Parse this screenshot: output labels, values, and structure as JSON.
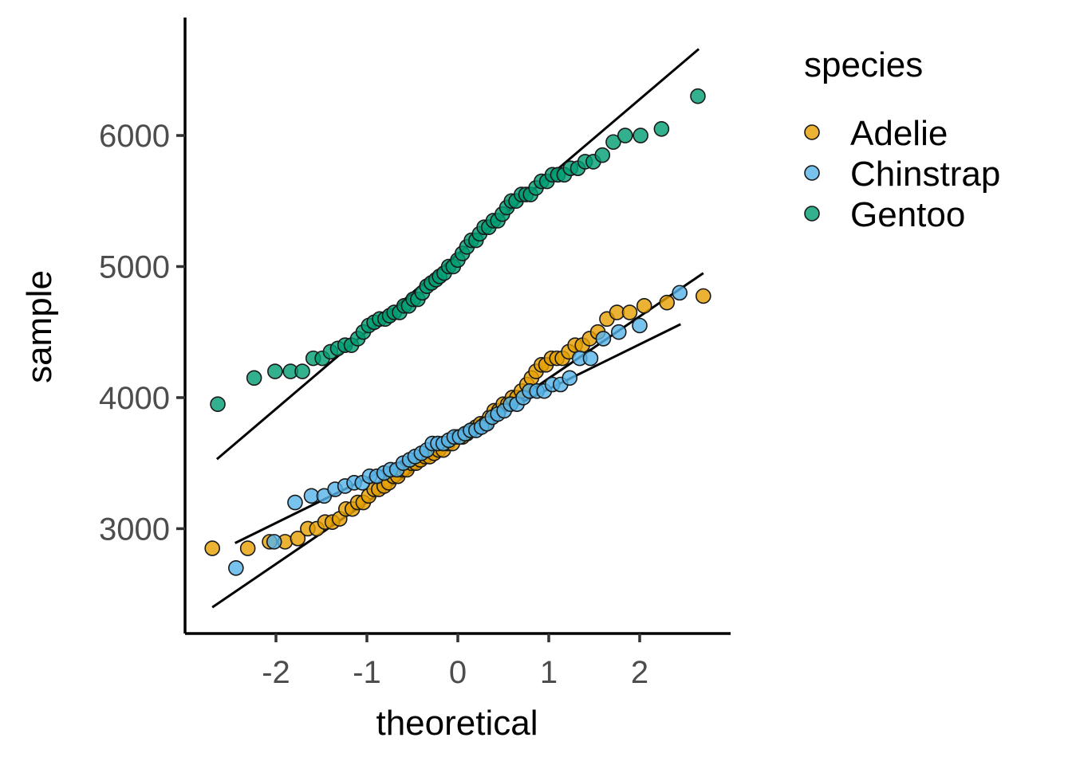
{
  "chart_data": {
    "type": "scatter",
    "title": "",
    "xlabel": "theoretical",
    "ylabel": "sample",
    "xlim": [
      -3.0,
      3.0
    ],
    "ylim": [
      2200,
      6900
    ],
    "x_ticks": [
      -2,
      -1,
      0,
      1,
      2
    ],
    "y_ticks": [
      3000,
      4000,
      5000,
      6000
    ],
    "grid": false,
    "legend": {
      "title": "species",
      "position": "right"
    },
    "series": [
      {
        "name": "Adelie",
        "color": "#E69F00",
        "n": 151,
        "y_min": 2850,
        "y_max": 4775,
        "reference_line": {
          "x": [
            -2.7,
            2.7
          ],
          "y": [
            2400,
            4950
          ]
        },
        "points": [
          [
            -2.7,
            2850
          ],
          [
            -2.31,
            2850
          ],
          [
            -2.07,
            2900
          ],
          [
            -1.9,
            2900
          ],
          [
            -1.76,
            2925
          ],
          [
            -1.65,
            3000
          ],
          [
            -1.55,
            3000
          ],
          [
            -1.46,
            3050
          ],
          [
            -1.38,
            3050
          ],
          [
            -1.3,
            3075
          ],
          [
            -1.23,
            3150
          ],
          [
            -1.16,
            3150
          ],
          [
            -1.1,
            3200
          ],
          [
            -1.04,
            3200
          ],
          [
            -0.98,
            3250
          ],
          [
            -0.92,
            3300
          ],
          [
            -0.87,
            3300
          ],
          [
            -0.81,
            3325
          ],
          [
            -0.76,
            3350
          ],
          [
            -0.71,
            3400
          ],
          [
            -0.66,
            3400
          ],
          [
            -0.61,
            3450
          ],
          [
            -0.56,
            3450
          ],
          [
            -0.51,
            3500
          ],
          [
            -0.46,
            3500
          ],
          [
            -0.41,
            3525
          ],
          [
            -0.36,
            3550
          ],
          [
            -0.31,
            3550
          ],
          [
            -0.26,
            3575
          ],
          [
            -0.21,
            3600
          ],
          [
            -0.16,
            3600
          ],
          [
            -0.11,
            3650
          ],
          [
            -0.06,
            3650
          ],
          [
            0.0,
            3700
          ],
          [
            0.05,
            3700
          ],
          [
            0.1,
            3725
          ],
          [
            0.15,
            3750
          ],
          [
            0.2,
            3775
          ],
          [
            0.25,
            3800
          ],
          [
            0.3,
            3800
          ],
          [
            0.35,
            3850
          ],
          [
            0.4,
            3900
          ],
          [
            0.45,
            3900
          ],
          [
            0.5,
            3950
          ],
          [
            0.55,
            3950
          ],
          [
            0.6,
            4000
          ],
          [
            0.65,
            4000
          ],
          [
            0.7,
            4050
          ],
          [
            0.76,
            4100
          ],
          [
            0.81,
            4150
          ],
          [
            0.86,
            4200
          ],
          [
            0.92,
            4250
          ],
          [
            0.97,
            4250
          ],
          [
            1.03,
            4300
          ],
          [
            1.09,
            4300
          ],
          [
            1.15,
            4300
          ],
          [
            1.22,
            4350
          ],
          [
            1.29,
            4400
          ],
          [
            1.37,
            4400
          ],
          [
            1.45,
            4450
          ],
          [
            1.54,
            4500
          ],
          [
            1.64,
            4600
          ],
          [
            1.75,
            4650
          ],
          [
            1.89,
            4650
          ],
          [
            2.05,
            4700
          ],
          [
            2.3,
            4725
          ],
          [
            2.7,
            4775
          ]
        ]
      },
      {
        "name": "Chinstrap",
        "color": "#56B4E9",
        "n": 68,
        "y_min": 2700,
        "y_max": 4800,
        "reference_line": {
          "x": [
            -2.45,
            2.45
          ],
          "y": [
            2890,
            4560
          ]
        },
        "points": [
          [
            -2.44,
            2700
          ],
          [
            -2.02,
            2900
          ],
          [
            -1.79,
            3200
          ],
          [
            -1.61,
            3250
          ],
          [
            -1.47,
            3250
          ],
          [
            -1.35,
            3300
          ],
          [
            -1.24,
            3325
          ],
          [
            -1.14,
            3350
          ],
          [
            -1.05,
            3350
          ],
          [
            -0.97,
            3400
          ],
          [
            -0.89,
            3400
          ],
          [
            -0.81,
            3425
          ],
          [
            -0.74,
            3450
          ],
          [
            -0.67,
            3450
          ],
          [
            -0.6,
            3500
          ],
          [
            -0.53,
            3525
          ],
          [
            -0.47,
            3550
          ],
          [
            -0.4,
            3575
          ],
          [
            -0.34,
            3600
          ],
          [
            -0.28,
            3650
          ],
          [
            -0.22,
            3650
          ],
          [
            -0.16,
            3650
          ],
          [
            -0.1,
            3675
          ],
          [
            -0.04,
            3700
          ],
          [
            0.02,
            3700
          ],
          [
            0.08,
            3725
          ],
          [
            0.14,
            3750
          ],
          [
            0.2,
            3750
          ],
          [
            0.26,
            3775
          ],
          [
            0.32,
            3800
          ],
          [
            0.38,
            3850
          ],
          [
            0.44,
            3875
          ],
          [
            0.51,
            3900
          ],
          [
            0.58,
            3950
          ],
          [
            0.65,
            3950
          ],
          [
            0.72,
            4000
          ],
          [
            0.79,
            4050
          ],
          [
            0.87,
            4050
          ],
          [
            0.95,
            4050
          ],
          [
            1.04,
            4100
          ],
          [
            1.13,
            4100
          ],
          [
            1.23,
            4150
          ],
          [
            1.34,
            4300
          ],
          [
            1.46,
            4300
          ],
          [
            1.6,
            4450
          ],
          [
            1.77,
            4500
          ],
          [
            2.0,
            4550
          ],
          [
            2.44,
            4800
          ]
        ]
      },
      {
        "name": "Gentoo",
        "color": "#009E73",
        "n": 123,
        "y_min": 3950,
        "y_max": 6300,
        "reference_line": {
          "x": [
            -2.65,
            2.65
          ],
          "y": [
            3530,
            6660
          ]
        },
        "points": [
          [
            -2.64,
            3950
          ],
          [
            -2.24,
            4150
          ],
          [
            -2.01,
            4200
          ],
          [
            -1.84,
            4200
          ],
          [
            -1.71,
            4200
          ],
          [
            -1.59,
            4300
          ],
          [
            -1.49,
            4300
          ],
          [
            -1.4,
            4350
          ],
          [
            -1.32,
            4375
          ],
          [
            -1.24,
            4400
          ],
          [
            -1.17,
            4400
          ],
          [
            -1.1,
            4450
          ],
          [
            -1.04,
            4500
          ],
          [
            -0.98,
            4550
          ],
          [
            -0.92,
            4575
          ],
          [
            -0.86,
            4600
          ],
          [
            -0.8,
            4600
          ],
          [
            -0.75,
            4625
          ],
          [
            -0.7,
            4650
          ],
          [
            -0.64,
            4650
          ],
          [
            -0.59,
            4700
          ],
          [
            -0.54,
            4700
          ],
          [
            -0.49,
            4750
          ],
          [
            -0.44,
            4750
          ],
          [
            -0.39,
            4800
          ],
          [
            -0.34,
            4850
          ],
          [
            -0.29,
            4875
          ],
          [
            -0.24,
            4900
          ],
          [
            -0.2,
            4925
          ],
          [
            -0.15,
            4950
          ],
          [
            -0.1,
            5000
          ],
          [
            -0.05,
            5000
          ],
          [
            0.0,
            5050
          ],
          [
            0.05,
            5100
          ],
          [
            0.1,
            5150
          ],
          [
            0.15,
            5200
          ],
          [
            0.2,
            5200
          ],
          [
            0.24,
            5250
          ],
          [
            0.29,
            5300
          ],
          [
            0.34,
            5300
          ],
          [
            0.39,
            5350
          ],
          [
            0.44,
            5350
          ],
          [
            0.49,
            5400
          ],
          [
            0.54,
            5450
          ],
          [
            0.59,
            5500
          ],
          [
            0.64,
            5500
          ],
          [
            0.7,
            5550
          ],
          [
            0.75,
            5550
          ],
          [
            0.8,
            5550
          ],
          [
            0.86,
            5600
          ],
          [
            0.92,
            5650
          ],
          [
            0.98,
            5650
          ],
          [
            1.04,
            5700
          ],
          [
            1.1,
            5700
          ],
          [
            1.17,
            5700
          ],
          [
            1.24,
            5750
          ],
          [
            1.32,
            5750
          ],
          [
            1.4,
            5800
          ],
          [
            1.49,
            5800
          ],
          [
            1.59,
            5850
          ],
          [
            1.71,
            5950
          ],
          [
            1.84,
            6000
          ],
          [
            2.01,
            6000
          ],
          [
            2.24,
            6050
          ],
          [
            2.64,
            6300
          ]
        ]
      }
    ]
  }
}
